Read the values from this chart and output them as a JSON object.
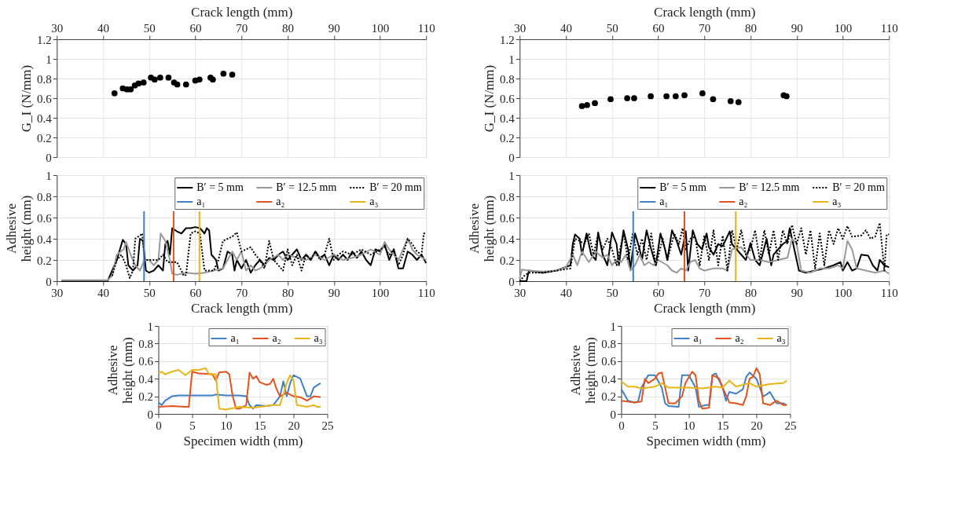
{
  "chart_data": [
    {
      "type": "scatter",
      "ylabel": "G_I (N/mm)",
      "xlabel": "Crack length (mm)",
      "xlim": [
        30,
        110
      ],
      "xticks": [
        30,
        40,
        50,
        60,
        70,
        80,
        90,
        100,
        110
      ],
      "ylim": [
        0,
        1.2
      ],
      "yticks": [
        0,
        0.2,
        0.4,
        0.6,
        0.8,
        1,
        1.2
      ],
      "grid": true,
      "marker": "circle",
      "series": [
        {
          "color": "#000000",
          "x": [
            42.5,
            44.3,
            45.2,
            46,
            46.9,
            47.7,
            48.8,
            50.4,
            51.2,
            52.4,
            54.2,
            55.4,
            56.1,
            58,
            60,
            60.9,
            63.3,
            63.8,
            66.1,
            68
          ],
          "values": [
            0.65,
            0.7,
            0.69,
            0.69,
            0.73,
            0.75,
            0.76,
            0.81,
            0.79,
            0.81,
            0.81,
            0.76,
            0.74,
            0.74,
            0.78,
            0.79,
            0.81,
            0.79,
            0.85,
            0.84
          ]
        }
      ]
    },
    {
      "type": "scatter",
      "ylabel": "G_I (N/mm)",
      "xlabel": "Crack length (mm)",
      "xlim": [
        30,
        110
      ],
      "xticks": [
        30,
        40,
        50,
        60,
        70,
        80,
        90,
        100,
        110
      ],
      "ylim": [
        0,
        1.2
      ],
      "yticks": [
        0,
        0.2,
        0.4,
        0.6,
        0.8,
        1,
        1.2
      ],
      "grid": true,
      "marker": "circle",
      "series": [
        {
          "color": "#000000",
          "x": [
            43.5,
            44.6,
            46.3,
            49.7,
            53.3,
            54.8,
            58.4,
            61.8,
            63.8,
            65.7,
            69.6,
            71.9,
            75.7,
            77.4,
            87.2,
            87.8
          ],
          "values": [
            0.52,
            0.53,
            0.55,
            0.59,
            0.6,
            0.6,
            0.62,
            0.62,
            0.62,
            0.63,
            0.65,
            0.59,
            0.57,
            0.56,
            0.63,
            0.62
          ]
        }
      ]
    },
    {
      "type": "line",
      "ylabel": "Adhesive\nheight (mm)",
      "xlabel": "Crack length (mm)",
      "xlim": [
        30,
        110
      ],
      "xticks": [
        30,
        40,
        50,
        60,
        70,
        80,
        90,
        100,
        110
      ],
      "ylim": [
        0,
        1
      ],
      "yticks": [
        0,
        0.2,
        0.4,
        0.6,
        0.8,
        1
      ],
      "grid": true,
      "legend": "top right",
      "series": [
        {
          "name": "B′ = 5 mm",
          "color": "#000000",
          "line_style": "solid",
          "x": [
            31,
            41,
            43,
            44.3,
            45,
            45.5,
            46.5,
            47.5,
            48,
            48.7,
            49.3,
            50,
            51,
            52,
            53,
            53.5,
            54,
            54.5,
            55,
            56,
            57,
            58,
            59,
            60,
            61,
            62,
            62.5,
            63,
            63.5,
            64.5,
            65,
            66,
            67,
            68,
            68.5,
            69,
            70,
            71,
            72,
            73,
            74,
            75,
            76,
            77,
            78,
            79,
            80,
            81,
            82,
            83,
            84,
            85,
            86,
            87,
            88,
            89,
            90,
            91,
            92,
            93,
            94,
            95,
            96,
            97,
            98,
            99,
            100,
            101,
            102,
            103,
            104,
            105,
            106,
            107,
            108,
            109,
            110
          ],
          "values": [
            0,
            0,
            0.2,
            0.39,
            0.35,
            0.15,
            0.1,
            0.15,
            0.4,
            0.38,
            0.1,
            0.08,
            0.1,
            0.15,
            0.1,
            0.35,
            0.38,
            0.25,
            0.5,
            0.47,
            0.45,
            0.5,
            0.5,
            0.51,
            0.5,
            0.45,
            0.5,
            0.48,
            0.25,
            0.2,
            0.1,
            0.12,
            0.28,
            0.25,
            0.1,
            0.2,
            0.12,
            0.2,
            0.08,
            0.15,
            0.2,
            0.15,
            0.22,
            0.2,
            0.25,
            0.28,
            0.2,
            0.25,
            0.3,
            0.2,
            0.25,
            0.2,
            0.28,
            0.22,
            0.25,
            0.15,
            0.25,
            0.2,
            0.25,
            0.2,
            0.28,
            0.22,
            0.28,
            0.2,
            0.15,
            0.3,
            0.28,
            0.35,
            0.2,
            0.3,
            0.12,
            0.12,
            0.28,
            0.25,
            0.2,
            0.25,
            0.17
          ]
        },
        {
          "name": "B′ = 12.5 mm",
          "color": "#999999",
          "line_style": "solid",
          "x": [
            31,
            41,
            42,
            43,
            44.5,
            45,
            46,
            47,
            48,
            49,
            50,
            51,
            52,
            52.5,
            53.5,
            54.5,
            55,
            56,
            58,
            60,
            62,
            64,
            66,
            67,
            68,
            69,
            70,
            71,
            72,
            73,
            74,
            75,
            76,
            78,
            79,
            80,
            82,
            84,
            86,
            88,
            90,
            92,
            94,
            96,
            98,
            100,
            101,
            102,
            104,
            105,
            106,
            107,
            108,
            110
          ],
          "values": [
            0.01,
            0.01,
            0.05,
            0.25,
            0.3,
            0.37,
            0.25,
            0.15,
            0.1,
            0.2,
            0.2,
            0.15,
            0.2,
            0.45,
            0.38,
            0.2,
            0.07,
            0.06,
            0.08,
            0.07,
            0.08,
            0.1,
            0.12,
            0.2,
            0.28,
            0.2,
            0.28,
            0.1,
            0.15,
            0.1,
            0.12,
            0.15,
            0.2,
            0.25,
            0.2,
            0.25,
            0.22,
            0.2,
            0.25,
            0.2,
            0.25,
            0.2,
            0.22,
            0.25,
            0.3,
            0.25,
            0.37,
            0.3,
            0.2,
            0.3,
            0.4,
            0.3,
            0.25,
            0.2
          ]
        },
        {
          "name": "B′ = 20 mm",
          "color": "#000000",
          "line_style": "dotted",
          "x": [
            42,
            43,
            44,
            45,
            45.8,
            46.5,
            47,
            48,
            48.5,
            49,
            50,
            52,
            53,
            54,
            56,
            57,
            57.5,
            58,
            59,
            60,
            61,
            62,
            64,
            65,
            66,
            67,
            68,
            69,
            70,
            71,
            72,
            73,
            74,
            75,
            76,
            77,
            78,
            79,
            80,
            81,
            82,
            83,
            84,
            85,
            86,
            87,
            88,
            89,
            90,
            91,
            92,
            94,
            96,
            98,
            100,
            101,
            102,
            103,
            104,
            105,
            106,
            107,
            108,
            109,
            109.5,
            110
          ],
          "values": [
            0.05,
            0.2,
            0.25,
            0.15,
            0.03,
            0.1,
            0.4,
            0.43,
            0.45,
            0.2,
            0.2,
            0.2,
            0.25,
            0.18,
            0.18,
            0.1,
            0.05,
            0.06,
            0.45,
            0.47,
            0.45,
            0.1,
            0.1,
            0.2,
            0.38,
            0.4,
            0.42,
            0.46,
            0.28,
            0.3,
            0.32,
            0.25,
            0.2,
            0.12,
            0.38,
            0.2,
            0.15,
            0.1,
            0.3,
            0.15,
            0.25,
            0.1,
            0.25,
            0.2,
            0.28,
            0.2,
            0.25,
            0.4,
            0.2,
            0.25,
            0.28,
            0.25,
            0.3,
            0.25,
            0.3,
            0.32,
            0.25,
            0.3,
            0.15,
            0.25,
            0.4,
            0.35,
            0.28,
            0.25,
            0.45,
            0.45
          ]
        }
      ],
      "ref_lines": [
        {
          "axis": "x",
          "value": 48.9,
          "label": "a₁",
          "color": "#3f7fc6"
        },
        {
          "axis": "x",
          "value": 55.3,
          "label": "a₂",
          "color": "#e2531d"
        },
        {
          "axis": "x",
          "value": 60.9,
          "label": "a₃",
          "color": "#e8b418"
        }
      ]
    },
    {
      "type": "line",
      "ylabel": "Adhesive\nheight (mm)",
      "xlabel": "Crack length (mm)",
      "xlim": [
        30,
        110
      ],
      "xticks": [
        30,
        40,
        50,
        60,
        70,
        80,
        90,
        100,
        110
      ],
      "ylim": [
        0,
        1
      ],
      "yticks": [
        0,
        0.2,
        0.4,
        0.6,
        0.8,
        1
      ],
      "grid": true,
      "legend": "top right",
      "series": [
        {
          "name": "B′ = 5 mm",
          "color": "#000000",
          "line_style": "solid",
          "x": [
            30,
            31.5,
            32,
            35,
            38,
            41,
            41.5,
            42,
            43,
            43.5,
            44.5,
            45.5,
            46.5,
            47,
            48,
            49,
            50,
            51,
            51.5,
            52.5,
            53.5,
            54,
            55,
            56,
            56.5,
            57.5,
            58.5,
            59.5,
            60.5,
            61.5,
            62,
            63,
            64,
            65,
            66,
            66.5,
            67.5,
            68.5,
            69.5,
            70.5,
            71,
            72,
            73,
            74,
            75.5,
            76,
            77,
            79,
            80,
            81,
            82,
            83.5,
            84.5,
            85,
            86,
            87,
            88,
            88.5,
            89.5,
            90.5,
            92,
            94,
            96,
            98,
            99.5,
            100,
            101,
            102,
            103,
            104,
            105.5,
            106.5,
            107.5,
            108,
            109,
            110
          ],
          "values": [
            0,
            0,
            0.1,
            0.08,
            0.1,
            0.15,
            0.35,
            0.44,
            0.4,
            0.25,
            0.45,
            0.25,
            0.2,
            0.46,
            0.25,
            0.15,
            0.46,
            0.35,
            0.15,
            0.48,
            0.3,
            0.12,
            0.45,
            0.3,
            0.2,
            0.48,
            0.3,
            0.15,
            0.45,
            0.3,
            0.2,
            0.48,
            0.38,
            0.25,
            0.47,
            0.1,
            0.48,
            0.35,
            0.3,
            0.45,
            0.32,
            0.25,
            0.35,
            0.33,
            0.47,
            0.35,
            0.3,
            0.2,
            0.36,
            0.2,
            0.15,
            0.4,
            0.15,
            0.25,
            0.3,
            0.35,
            0.38,
            0.5,
            0.3,
            0.1,
            0.08,
            0.1,
            0.12,
            0.15,
            0.18,
            0.1,
            0.18,
            0.1,
            0.12,
            0.25,
            0.24,
            0.15,
            0.1,
            0.2,
            0.15,
            0.13
          ]
        },
        {
          "name": "B′ = 12.5 mm",
          "color": "#999999",
          "line_style": "solid",
          "x": [
            30,
            30.5,
            32,
            35,
            38,
            40,
            41.5,
            42.5,
            43.5,
            45,
            46.5,
            48,
            49,
            50,
            51,
            52,
            53,
            54,
            55,
            56,
            57,
            58,
            59,
            60,
            62,
            63,
            64,
            65,
            66,
            67,
            68,
            69,
            70,
            72,
            74,
            75,
            76,
            78,
            80,
            82,
            84,
            86,
            88,
            89,
            90,
            91,
            93,
            95,
            97,
            99,
            100,
            101,
            102,
            103,
            105,
            107,
            109,
            110
          ],
          "values": [
            0.02,
            0.11,
            0.1,
            0.09,
            0.1,
            0.13,
            0.25,
            0.15,
            0.28,
            0.18,
            0.28,
            0.22,
            0.25,
            0.15,
            0.2,
            0.18,
            0.25,
            0.1,
            0.15,
            0.25,
            0.15,
            0.18,
            0.15,
            0.2,
            0.15,
            0.1,
            0.08,
            0.12,
            0.1,
            0.18,
            0.2,
            0.12,
            0.1,
            0.12,
            0.12,
            0.1,
            0.3,
            0.32,
            0.2,
            0.2,
            0.18,
            0.2,
            0.22,
            0.4,
            0.35,
            0.1,
            0.08,
            0.12,
            0.12,
            0.15,
            0.12,
            0.38,
            0.3,
            0.12,
            0.1,
            0.08,
            0.1,
            0.07
          ]
        },
        {
          "name": "B′ = 20 mm",
          "color": "#000000",
          "line_style": "dotted",
          "x": [
            30,
            31,
            32,
            35,
            38,
            41,
            42,
            43,
            44,
            45,
            46,
            47,
            48,
            49,
            50,
            51,
            52.5,
            53.5,
            54.5,
            55.5,
            56.5,
            57.5,
            58.5,
            59.5,
            61,
            62,
            63.5,
            64.5,
            65.3,
            66,
            67,
            68,
            69,
            70,
            71,
            72,
            73,
            74,
            75,
            76,
            77,
            78,
            79,
            80,
            81,
            82,
            83,
            84,
            85,
            86,
            87,
            88,
            89,
            90,
            91,
            92,
            93,
            94,
            95,
            96,
            97,
            98,
            99,
            100,
            101,
            102,
            104,
            105,
            106,
            107,
            108,
            109,
            109.5,
            110
          ],
          "values": [
            0,
            0.05,
            0.08,
            0.08,
            0.1,
            0.12,
            0.4,
            0.38,
            0.35,
            0.45,
            0.25,
            0.44,
            0.3,
            0.4,
            0.3,
            0.15,
            0.45,
            0.2,
            0.45,
            0.25,
            0.4,
            0.2,
            0.45,
            0.15,
            0.4,
            0.2,
            0.45,
            0.35,
            0.5,
            0.3,
            0.4,
            0.42,
            0.15,
            0.43,
            0.2,
            0.48,
            0.15,
            0.43,
            0.1,
            0.48,
            0.3,
            0.48,
            0.25,
            0.3,
            0.48,
            0.2,
            0.48,
            0.25,
            0.48,
            0.2,
            0.48,
            0.35,
            0.53,
            0.35,
            0.5,
            0.25,
            0.48,
            0.12,
            0.45,
            0.15,
            0.48,
            0.35,
            0.5,
            0.4,
            0.52,
            0.42,
            0.43,
            0.48,
            0.4,
            0.42,
            0.55,
            0.1,
            0.44,
            0.44
          ]
        }
      ],
      "ref_lines": [
        {
          "axis": "x",
          "value": 54.6,
          "label": "a₁",
          "color": "#3f7fc6"
        },
        {
          "axis": "x",
          "value": 65.7,
          "label": "a₂",
          "color": "#e2531d"
        },
        {
          "axis": "x",
          "value": 76.8,
          "label": "a₃",
          "color": "#e8b418"
        }
      ]
    },
    {
      "type": "line",
      "ylabel": "Adhesive\nheight (mm)",
      "xlabel": "Specimen width (mm)",
      "xlim": [
        0,
        25
      ],
      "xticks": [
        0,
        5,
        10,
        15,
        20,
        25
      ],
      "ylim": [
        0,
        1
      ],
      "yticks": [
        0,
        0.2,
        0.4,
        0.6,
        0.8,
        1
      ],
      "grid": true,
      "legend": "top right",
      "series": [
        {
          "name": "a₁",
          "color": "#3f7fc6",
          "line_style": "solid",
          "x": [
            0,
            0.5,
            1,
            2,
            3,
            5,
            8,
            8.5,
            10,
            12,
            13,
            13.5,
            14,
            14.5,
            16,
            17,
            18,
            18.5,
            19,
            19.5,
            20,
            21,
            22,
            22.5,
            23,
            24
          ],
          "values": [
            0.13,
            0.1,
            0.15,
            0.2,
            0.21,
            0.21,
            0.21,
            0.22,
            0.21,
            0.21,
            0.2,
            0.1,
            0.06,
            0.1,
            0.09,
            0.1,
            0.2,
            0.37,
            0.2,
            0.35,
            0.44,
            0.4,
            0.2,
            0.2,
            0.3,
            0.35
          ]
        },
        {
          "name": "a₂",
          "color": "#e2531d",
          "line_style": "solid",
          "x": [
            0,
            2,
            4,
            4.5,
            5,
            6,
            8,
            8.5,
            9,
            10,
            10.5,
            11,
            11.5,
            12,
            13,
            13.5,
            14,
            14.5,
            15,
            16,
            16.5,
            17,
            17.5,
            18,
            19,
            20,
            21,
            22,
            23,
            24
          ],
          "values": [
            0.08,
            0.09,
            0.08,
            0.08,
            0.48,
            0.46,
            0.45,
            0.38,
            0.47,
            0.48,
            0.45,
            0.2,
            0.06,
            0.06,
            0.1,
            0.47,
            0.4,
            0.43,
            0.36,
            0.33,
            0.34,
            0.4,
            0.28,
            0.2,
            0.24,
            0.2,
            0.19,
            0.15,
            0.2,
            0.19
          ]
        },
        {
          "name": "a₃",
          "color": "#e8b418",
          "line_style": "solid",
          "x": [
            0,
            0.5,
            1,
            2,
            3,
            4,
            5,
            6,
            7,
            7.5,
            8.5,
            9,
            10,
            12,
            14,
            15,
            17,
            18,
            19,
            19.5,
            20,
            20.5,
            22,
            23,
            23.5,
            24
          ],
          "values": [
            0.46,
            0.48,
            0.45,
            0.48,
            0.5,
            0.44,
            0.5,
            0.5,
            0.52,
            0.45,
            0.45,
            0.06,
            0.05,
            0.08,
            0.07,
            0.08,
            0.1,
            0.1,
            0.35,
            0.44,
            0.38,
            0.1,
            0.08,
            0.1,
            0.08,
            0.08
          ]
        }
      ]
    },
    {
      "type": "line",
      "ylabel": "Adhesive\nheight (mm)",
      "xlabel": "Specimen width (mm)",
      "xlim": [
        0,
        25
      ],
      "xticks": [
        0,
        5,
        10,
        15,
        20,
        25
      ],
      "ylim": [
        0,
        1
      ],
      "yticks": [
        0,
        0.2,
        0.4,
        0.6,
        0.8,
        1
      ],
      "grid": true,
      "legend": "top right",
      "series": [
        {
          "name": "a₁",
          "color": "#3f7fc6",
          "line_style": "solid",
          "x": [
            0,
            0.5,
            1,
            2,
            2.5,
            3,
            4,
            5,
            6,
            6.5,
            7,
            8.5,
            9,
            10,
            11,
            11.5,
            12.5,
            13,
            13.5,
            14,
            15,
            15.5,
            16,
            17,
            18,
            18.5,
            19,
            20,
            20.5,
            21,
            21.5,
            22,
            23,
            24,
            24.5
          ],
          "values": [
            0.28,
            0.22,
            0.15,
            0.13,
            0.14,
            0.3,
            0.44,
            0.44,
            0.3,
            0.12,
            0.09,
            0.08,
            0.44,
            0.44,
            0.3,
            0.08,
            0.1,
            0.1,
            0.44,
            0.46,
            0.3,
            0.15,
            0.25,
            0.23,
            0.28,
            0.42,
            0.47,
            0.4,
            0.3,
            0.2,
            0.22,
            0.25,
            0.12,
            0.12,
            0.1
          ]
        },
        {
          "name": "a₂",
          "color": "#e2531d",
          "line_style": "solid",
          "x": [
            0,
            2,
            3,
            3.5,
            4,
            5,
            5.5,
            6,
            6.5,
            7,
            8,
            9,
            9.5,
            10.5,
            11,
            11.5,
            12,
            13,
            13.5,
            14.5,
            15,
            16,
            17,
            18,
            18.5,
            19,
            19.5,
            20,
            20.5,
            21,
            22,
            23,
            24,
            24.5
          ],
          "values": [
            0.15,
            0.13,
            0.14,
            0.4,
            0.35,
            0.4,
            0.46,
            0.47,
            0.3,
            0.12,
            0.12,
            0.2,
            0.35,
            0.48,
            0.44,
            0.15,
            0.06,
            0.07,
            0.44,
            0.4,
            0.3,
            0.13,
            0.12,
            0.1,
            0.2,
            0.4,
            0.42,
            0.52,
            0.45,
            0.12,
            0.1,
            0.15,
            0.1,
            0.1
          ]
        },
        {
          "name": "a₃",
          "color": "#e8b418",
          "line_style": "solid",
          "x": [
            0,
            1,
            2,
            3,
            4,
            5,
            6,
            7,
            8,
            10,
            12,
            14,
            15,
            16,
            17,
            19,
            20,
            22,
            24,
            24.5
          ],
          "values": [
            0.37,
            0.31,
            0.31,
            0.29,
            0.3,
            0.31,
            0.35,
            0.3,
            0.3,
            0.3,
            0.29,
            0.31,
            0.3,
            0.38,
            0.31,
            0.35,
            0.31,
            0.34,
            0.35,
            0.38
          ]
        }
      ]
    }
  ]
}
